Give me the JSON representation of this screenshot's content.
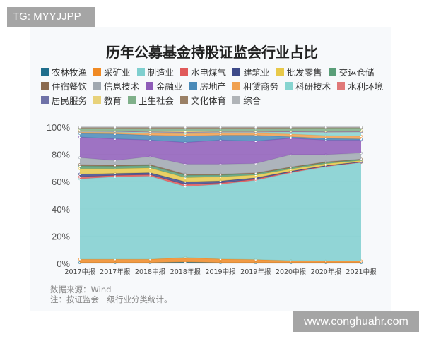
{
  "badge": "TG: MYYJJPP",
  "watermark": "www.conghuahr.com",
  "source": "数据来源：Wind",
  "note": "注：按证监会一级行业分类统计。",
  "chart_data": {
    "type": "area",
    "stacked": true,
    "title": "历年公募基金持股证监会行业占比",
    "xlabel": "",
    "ylabel": "",
    "ylim": [
      0,
      100
    ],
    "yticks": [
      "0%",
      "20%",
      "40%",
      "60%",
      "80%",
      "100%"
    ],
    "grid": true,
    "legend_position": "top",
    "categories": [
      "2017中报",
      "2017年报",
      "2018中报",
      "2018年报",
      "2019中报",
      "2019年报",
      "2020中报",
      "2020年报",
      "2021中报"
    ],
    "series": [
      {
        "name": "农林牧渔",
        "color": "#1f6e8c",
        "values": [
          0.5,
          0.5,
          0.5,
          1.0,
          0.5,
          0.5,
          0.5,
          0.5,
          0.5
        ]
      },
      {
        "name": "采矿业",
        "color": "#f08a24",
        "values": [
          2.5,
          2.5,
          2.5,
          3.3,
          2.7,
          2.3,
          1.5,
          1.3,
          1.3
        ]
      },
      {
        "name": "制造业",
        "color": "#7fcfcf",
        "values": [
          59.0,
          60.5,
          61.0,
          52.1,
          54.8,
          58.2,
          64.5,
          69.2,
          72.2
        ]
      },
      {
        "name": "水电煤气",
        "color": "#e05a5a",
        "values": [
          1.5,
          1.0,
          1.0,
          1.5,
          1.0,
          0.8,
          0.6,
          0.4,
          0.3
        ]
      },
      {
        "name": "建筑业",
        "color": "#3e4a89",
        "values": [
          2.0,
          1.5,
          1.5,
          2.0,
          1.5,
          1.0,
          0.6,
          0.4,
          0.3
        ]
      },
      {
        "name": "批发零售",
        "color": "#e8c94a",
        "values": [
          4.0,
          3.5,
          3.5,
          3.0,
          3.0,
          2.0,
          1.5,
          1.3,
          0.9
        ]
      },
      {
        "name": "交运仓储",
        "color": "#5a9e78",
        "values": [
          2.0,
          1.8,
          1.8,
          1.8,
          1.3,
          1.0,
          1.0,
          0.9,
          0.6
        ]
      },
      {
        "name": "住宿餐饮",
        "color": "#8b6a4f",
        "values": [
          1.0,
          0.7,
          0.7,
          0.8,
          0.7,
          0.6,
          0.5,
          0.5,
          0.4
        ]
      },
      {
        "name": "信息技术",
        "color": "#a0a8b0",
        "values": [
          5.1,
          3.5,
          5.9,
          7.3,
          7.3,
          6.9,
          9.1,
          5.3,
          4.5
        ]
      },
      {
        "name": "金融业",
        "color": "#8e5cb8",
        "values": [
          15.0,
          15.9,
          12.1,
          16.0,
          17.7,
          16.4,
          12.1,
          10.7,
          9.5
        ]
      },
      {
        "name": "房地产",
        "color": "#4a8ab8",
        "values": [
          2.7,
          3.6,
          3.5,
          4.7,
          3.5,
          4.3,
          1.0,
          1.2,
          0.8
        ]
      },
      {
        "name": "租赁商务",
        "color": "#f0a050",
        "values": [
          1.0,
          1.2,
          1.5,
          1.6,
          1.5,
          1.5,
          2.0,
          2.0,
          2.0
        ]
      },
      {
        "name": "科研技术",
        "color": "#86d4d0",
        "values": [
          0.5,
          0.5,
          0.7,
          0.8,
          0.7,
          0.7,
          1.5,
          2.5,
          3.0
        ]
      },
      {
        "name": "水利环境",
        "color": "#e07878",
        "values": [
          0.3,
          0.3,
          0.4,
          0.4,
          0.4,
          0.4,
          0.4,
          0.4,
          0.4
        ]
      },
      {
        "name": "居民服务",
        "color": "#6f72a8",
        "values": [
          0.1,
          0.1,
          0.1,
          0.1,
          0.1,
          0.1,
          0.1,
          0.1,
          0.1
        ]
      },
      {
        "name": "教育",
        "color": "#e8d27a",
        "values": [
          0.3,
          0.3,
          0.4,
          0.5,
          0.4,
          0.4,
          0.4,
          0.5,
          0.5
        ]
      },
      {
        "name": "卫生社会",
        "color": "#7fb08a",
        "values": [
          1.5,
          1.6,
          1.8,
          2.0,
          1.8,
          1.8,
          1.8,
          2.0,
          2.0
        ]
      },
      {
        "name": "文化体育",
        "color": "#9a8066",
        "values": [
          0.7,
          0.7,
          0.8,
          0.8,
          0.8,
          0.8,
          0.6,
          0.5,
          0.4
        ]
      },
      {
        "name": "综合",
        "color": "#b0b4b8",
        "values": [
          0.3,
          0.3,
          0.3,
          0.3,
          0.3,
          0.3,
          0.3,
          0.3,
          0.3
        ]
      }
    ]
  }
}
